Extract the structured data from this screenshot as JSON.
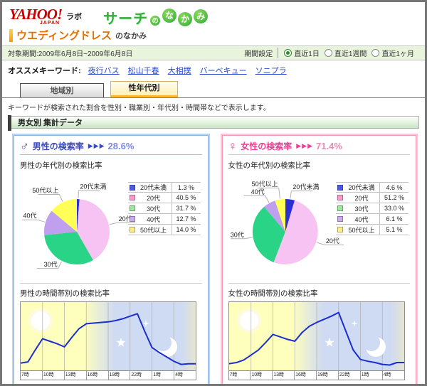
{
  "header": {
    "logo_yahoo": "YAHOO!",
    "logo_japan": "JAPAN",
    "logo_lab": "ラボ",
    "service_title_main": "サーチ",
    "service_bubble_no": "の",
    "service_bubble_na": "な",
    "service_bubble_ka": "か",
    "service_bubble_mi": "み"
  },
  "keyword_bar": {
    "keyword": "ウエディングドレス",
    "suffix": "のなかみ"
  },
  "period_bar": {
    "range_label": "対象期間:2009年6月8日~2009年6月8日",
    "setting_label": "期間設定",
    "options": [
      {
        "label": "直近1日",
        "selected": true
      },
      {
        "label": "直近1週間",
        "selected": false
      },
      {
        "label": "直近1ヶ月",
        "selected": false
      }
    ]
  },
  "recommended": {
    "label": "オススメキーワード:",
    "links": [
      "夜行バス",
      "松山千春",
      "大相撲",
      "バーベキュー",
      "ソニプラ"
    ]
  },
  "tabs": [
    {
      "label": "地域別",
      "active": false
    },
    {
      "label": "性年代別",
      "active": true
    }
  ],
  "description": "キーワードが検索された割合を性別・職業別・年代別・時間帯などで表示します。",
  "section_title": "男女別 集計データ",
  "hour_labels": [
    "7時",
    "10時",
    "13時",
    "16時",
    "19時",
    "22時",
    "1時",
    "4時"
  ],
  "panels": [
    {
      "gender": "male",
      "icon": "♂",
      "title": "男性の検索率",
      "arrows": "▶▶▶",
      "value": "28.6%",
      "pie_title": "男性の年代別の検索比率",
      "time_title": "男性の時間帯別の検索比率",
      "colors": {
        "border_outer": "#b9d4ef",
        "border_inner": "#8fb3da",
        "rule": "#a9c3df",
        "accent": "#3a49c6",
        "value": "#7d88e2"
      }
    },
    {
      "gender": "female",
      "icon": "♀",
      "title": "女性の検索率",
      "arrows": "▶▶▶",
      "value": "71.4%",
      "pie_title": "女性の年代別の検索比率",
      "time_title": "女性の時間帯別の検索比率",
      "colors": {
        "border_outer": "#f7c5d3",
        "border_inner": "#ee9cb8",
        "rule": "#f2b9cd",
        "accent": "#ee3d92",
        "value": "#f585b6"
      }
    }
  ],
  "chart_data": [
    {
      "type": "pie",
      "title": "男性の年代別の検索比率",
      "labels": [
        "20代未満",
        "20代",
        "30代",
        "40代",
        "50代以上"
      ],
      "values": [
        1.3,
        40.5,
        31.7,
        12.7,
        14.0
      ],
      "display_values": [
        "1.3 %",
        "40.5 %",
        "31.7 %",
        "12.7 %",
        "14.0 %"
      ],
      "colors": [
        "#2b2fd4",
        "#f6c3f2",
        "#29d486",
        "#bf9fee",
        "#ffff55"
      ],
      "legend_colors": [
        "#4d5ae8",
        "#ff99cc",
        "#9ce89c",
        "#cbaaf0",
        "#ffee88"
      ],
      "legend_position": "right"
    },
    {
      "type": "pie",
      "title": "女性の年代別の検索比率",
      "labels": [
        "20代未満",
        "20代",
        "30代",
        "40代",
        "50代以上"
      ],
      "values": [
        4.6,
        51.2,
        33.0,
        6.1,
        5.1
      ],
      "display_values": [
        "4.6 %",
        "51.2 %",
        "33.0 %",
        "6.1 %",
        "5.1 %"
      ],
      "colors": [
        "#2b2fd4",
        "#f6c3f2",
        "#29d486",
        "#bf9fee",
        "#ffff55"
      ],
      "legend_colors": [
        "#4d5ae8",
        "#ff99cc",
        "#9ce89c",
        "#cbaaf0",
        "#ffee88"
      ],
      "legend_position": "right"
    },
    {
      "type": "line",
      "title": "男性の時間帯別の検索比率",
      "x_tick_labels": [
        "7時",
        "10時",
        "13時",
        "16時",
        "19時",
        "22時",
        "1時",
        "4時"
      ],
      "x_hours": [
        7,
        8,
        9,
        10,
        11,
        12,
        13,
        14,
        15,
        16,
        17,
        18,
        19,
        20,
        21,
        22,
        23,
        0,
        1,
        2,
        3,
        4,
        5,
        6
      ],
      "values": [
        7,
        9,
        28,
        46,
        42,
        38,
        33,
        48,
        62,
        70,
        71,
        72,
        73,
        75,
        78,
        82,
        86,
        58,
        32,
        24,
        17,
        10,
        5,
        6
      ],
      "y_range": [
        0,
        100
      ],
      "line_color": "#1b2fd0",
      "day_color": "#ffffbd",
      "night_color": "#cfdaf3",
      "grid": true
    },
    {
      "type": "line",
      "title": "女性の時間帯別の検索比率",
      "x_tick_labels": [
        "7時",
        "10時",
        "13時",
        "16時",
        "19時",
        "22時",
        "1時",
        "4時"
      ],
      "x_hours": [
        7,
        8,
        9,
        10,
        11,
        12,
        13,
        14,
        15,
        16,
        17,
        18,
        19,
        20,
        21,
        22,
        23,
        0,
        1,
        2,
        3,
        4,
        5,
        6
      ],
      "values": [
        6,
        8,
        12,
        20,
        28,
        40,
        53,
        49,
        45,
        42,
        56,
        66,
        72,
        77,
        82,
        88,
        58,
        28,
        13,
        10,
        8,
        5,
        4,
        8
      ],
      "y_range": [
        0,
        100
      ],
      "line_color": "#1b2fd0",
      "day_color": "#ffffbd",
      "night_color": "#cfdaf3",
      "grid": true
    }
  ]
}
